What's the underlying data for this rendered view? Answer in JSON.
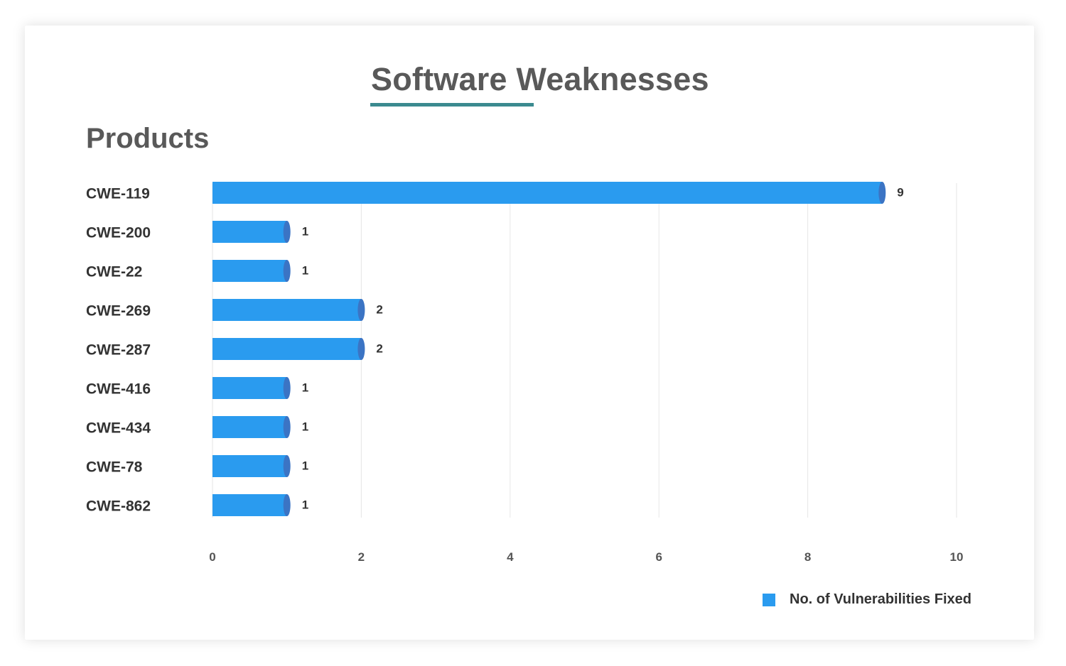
{
  "page": {
    "title": "Software Weaknesses",
    "accent_color": "#3b8a8f"
  },
  "chart_data": {
    "type": "bar",
    "orientation": "horizontal",
    "title": "Products",
    "categories": [
      "CWE-119",
      "CWE-200",
      "CWE-22",
      "CWE-269",
      "CWE-287",
      "CWE-416",
      "CWE-434",
      "CWE-78",
      "CWE-862"
    ],
    "series": [
      {
        "name": "No. of Vulnerabilities Fixed",
        "values": [
          9,
          1,
          1,
          2,
          2,
          1,
          1,
          1,
          1
        ],
        "color": "#2a9bef"
      }
    ],
    "xticks": [
      0,
      2,
      4,
      6,
      8,
      10
    ],
    "xlim": [
      0,
      10
    ],
    "grid": true,
    "legend_position": "bottom-right",
    "data_labels": true
  }
}
